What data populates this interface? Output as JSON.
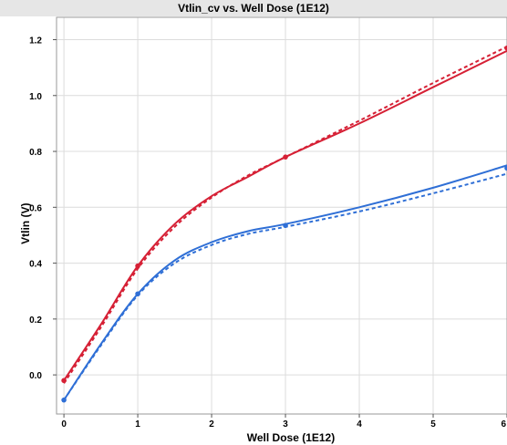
{
  "chart_data": {
    "type": "line",
    "title": "Vtlin_cv vs. Well Dose (1E12)",
    "xlabel": "Well Dose (1E12)",
    "ylabel": "Vtlin (V)",
    "xlim": [
      -0.1,
      6.0
    ],
    "ylim": [
      -0.14,
      1.28
    ],
    "xticks": [
      0,
      1,
      2,
      3,
      4,
      5,
      6
    ],
    "yticks": [
      0.0,
      0.2,
      0.4,
      0.6,
      0.8,
      1.0,
      1.2
    ],
    "xtick_labels": [
      "0",
      "1",
      "2",
      "3",
      "4",
      "5",
      "6"
    ],
    "ytick_labels": [
      "0.0",
      "0.2",
      "0.4",
      "0.6",
      "0.8",
      "1.0",
      "1.2"
    ],
    "grid": true,
    "series": [
      {
        "color": "#d62035",
        "style": "solid",
        "x": [
          0,
          0.5,
          1,
          1.5,
          2,
          2.5,
          3,
          4,
          5,
          6
        ],
        "y": [
          -0.02,
          0.18,
          0.39,
          0.54,
          0.64,
          0.71,
          0.78,
          0.9,
          1.03,
          1.16
        ]
      },
      {
        "color": "#d62035",
        "style": "dashed",
        "x": [
          0,
          0.5,
          1,
          1.5,
          2,
          2.5,
          3,
          4,
          5,
          6
        ],
        "y": [
          -0.03,
          0.17,
          0.38,
          0.53,
          0.635,
          0.715,
          0.78,
          0.91,
          1.045,
          1.175
        ]
      },
      {
        "color": "#2f6fd6",
        "style": "solid",
        "x": [
          0,
          0.5,
          1,
          1.5,
          2,
          2.5,
          3,
          4,
          5,
          6
        ],
        "y": [
          -0.09,
          0.11,
          0.29,
          0.41,
          0.475,
          0.515,
          0.54,
          0.6,
          0.67,
          0.75
        ]
      },
      {
        "color": "#2f6fd6",
        "style": "dashed",
        "x": [
          0,
          0.5,
          1,
          1.5,
          2,
          2.5,
          3,
          4,
          5,
          6
        ],
        "y": [
          -0.09,
          0.105,
          0.285,
          0.4,
          0.465,
          0.505,
          0.53,
          0.585,
          0.65,
          0.72
        ]
      }
    ],
    "markers": [
      {
        "color": "#d62035",
        "x": [
          0,
          1,
          3,
          6
        ],
        "y": [
          -0.02,
          0.39,
          0.78,
          1.17
        ]
      },
      {
        "color": "#2f6fd6",
        "x": [
          0,
          1,
          3,
          6
        ],
        "y": [
          -0.09,
          0.29,
          0.535,
          0.74
        ]
      }
    ]
  }
}
